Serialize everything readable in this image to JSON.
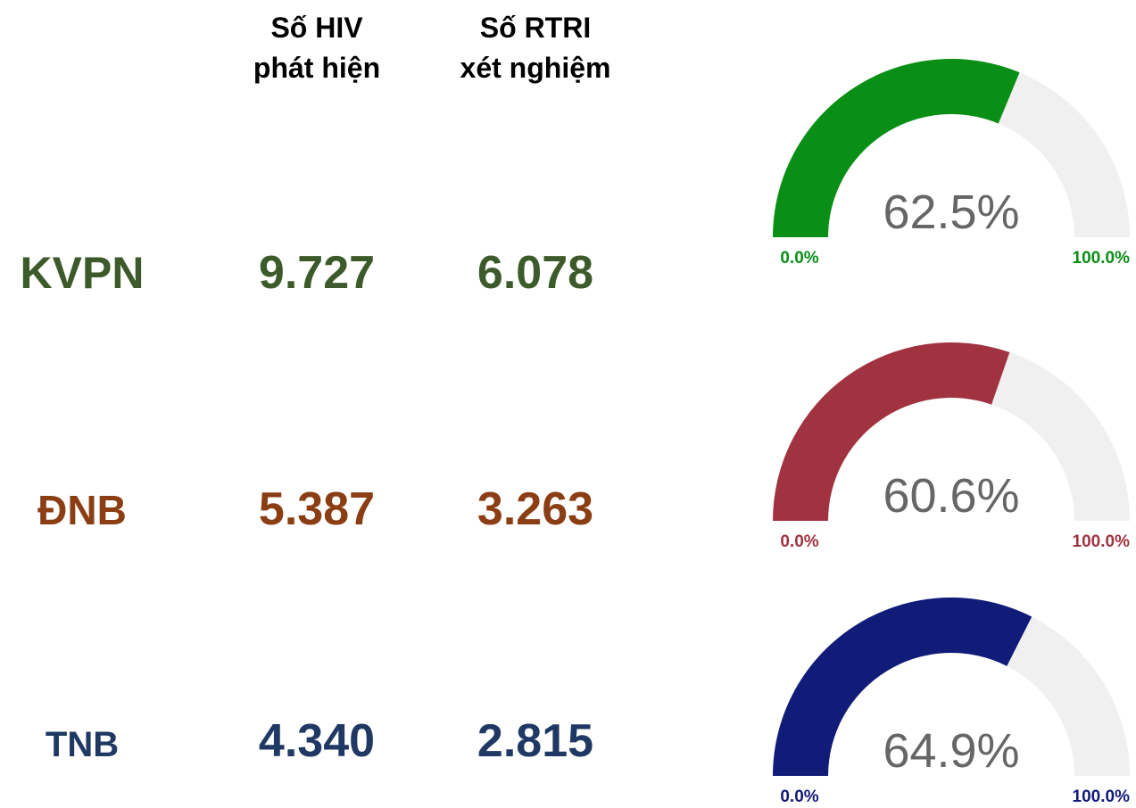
{
  "header": {
    "hiv": [
      "Số HIV",
      "phát hiện"
    ],
    "rtri": [
      "Số RTRI",
      "xét nghiệm"
    ]
  },
  "rows": [
    {
      "region": "KVPN",
      "hiv": "9.727",
      "rtri": "6.078",
      "text_color": "#3d5a2a",
      "gauge": {
        "value": 62.5,
        "label": "62.5%",
        "min": {
          "value": 0,
          "label": "0.0%"
        },
        "max": {
          "value": 100,
          "label": "100.0%"
        },
        "color": "#0a8f16"
      }
    },
    {
      "region": "ĐNB",
      "hiv": "5.387",
      "rtri": "3.263",
      "text_color": "#8b3d13",
      "gauge": {
        "value": 60.6,
        "label": "60.6%",
        "min": {
          "value": 0,
          "label": "0.0%"
        },
        "max": {
          "value": 100,
          "label": "100.0%"
        },
        "color": "#a0333f"
      }
    },
    {
      "region": "TNB",
      "hiv": "4.340",
      "rtri": "2.815",
      "text_color": "#1f3864",
      "gauge": {
        "value": 64.9,
        "label": "64.9%",
        "min": {
          "value": 0,
          "label": "0.0%"
        },
        "max": {
          "value": 100,
          "label": "100.0%"
        },
        "color": "#111b78"
      }
    }
  ]
}
